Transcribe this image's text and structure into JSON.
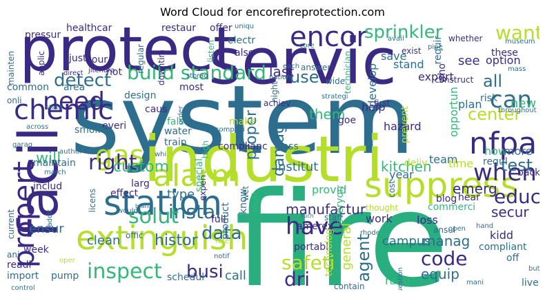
{
  "title": "Word Cloud for encorefireprotection.com",
  "palette": {
    "dark_purple": "#440154",
    "indigo": "#3b2a84",
    "blue": "#31688e",
    "teal": "#21918c",
    "green": "#35b779",
    "lime": "#b5de2b",
    "grey_text": "#c9c9c9"
  },
  "words": [
    {
      "text": "system",
      "color": "#2d6e8e"
    },
    {
      "text": "fire",
      "color": "#29af7f"
    },
    {
      "text": "protect",
      "color": "#3b2a84"
    },
    {
      "text": "servic",
      "color": "#3b2a84"
    },
    {
      "text": "industri",
      "color": "#b5de2b"
    },
    {
      "text": "facil",
      "color": "#3b2a84"
    },
    {
      "text": "extinguish",
      "color": "#b5de2b"
    },
    {
      "text": "suppress",
      "color": "#b5de2b"
    },
    {
      "text": "station",
      "color": "#2d6e8e"
    },
    {
      "text": "alarm",
      "color": "#b5de2b"
    },
    {
      "text": "encor",
      "color": "#3b2a84"
    },
    {
      "text": "nfpa",
      "color": "#3b2a84"
    },
    {
      "text": "chemic",
      "color": "#3b2a84"
    },
    {
      "text": "propert",
      "color": "#3b2a84"
    },
    {
      "text": "need",
      "color": "#3b2a84"
    },
    {
      "text": "sprinkler",
      "color": "#35b779"
    },
    {
      "text": "want",
      "color": "#b5de2b"
    },
    {
      "text": "build standard",
      "color": "#35b779"
    },
    {
      "text": "inspect",
      "color": "#35b779"
    },
    {
      "text": "gas",
      "color": "#b5de2b"
    },
    {
      "text": "when",
      "color": "#3b2a84"
    },
    {
      "text": "right",
      "color": "#3b2a84"
    },
    {
      "text": "have",
      "color": "#3b2a84"
    },
    {
      "text": "detect",
      "color": "#2d6e8e"
    },
    {
      "text": "can",
      "color": "#2d6e8e"
    },
    {
      "text": "educ",
      "color": "#3b2a84"
    },
    {
      "text": "instal",
      "color": "#2d6e8e"
    },
    {
      "text": "safeti",
      "color": "#b5de2b"
    },
    {
      "text": "data",
      "color": "#2d6e8e"
    },
    {
      "text": "dri",
      "color": "#3b2a84"
    },
    {
      "text": "center",
      "color": "#b5de2b"
    },
    {
      "text": "test",
      "color": "#2d6e8e"
    },
    {
      "text": "solut",
      "color": "#35b779"
    },
    {
      "text": "code",
      "color": "#3b2a84"
    },
    {
      "text": "busi",
      "color": "#3b2a84"
    },
    {
      "text": "histor",
      "color": "#2d6e8e"
    },
    {
      "text": "custom",
      "color": "#35b779"
    },
    {
      "text": "use",
      "color": "#2d6e8e"
    },
    {
      "text": "last",
      "color": "#3b2a84"
    },
    {
      "text": "all",
      "color": "#2d6e8e"
    },
    {
      "text": "will",
      "color": "#35b779"
    },
    {
      "text": "them",
      "color": "#35b779"
    },
    {
      "text": "manufactur",
      "color": "#3b2a84"
    },
    {
      "text": "institut",
      "color": "#2d6e8e"
    },
    {
      "text": "kitchen",
      "color": "#35b779"
    },
    {
      "text": "emerg",
      "color": "#3b2a84"
    },
    {
      "text": "secur",
      "color": "#3b2a84"
    },
    {
      "text": "equip",
      "color": "#2d6e8e"
    },
    {
      "text": "manag",
      "color": "#2d6e8e"
    },
    {
      "text": "campus",
      "color": "#2d6e8e"
    },
    {
      "text": "type",
      "color": "#2d6e8e"
    },
    {
      "text": "clean",
      "color": "#2d6e8e"
    },
    {
      "text": "call",
      "color": "#2d6e8e"
    },
    {
      "text": "ensur",
      "color": "#2d6e8e"
    },
    {
      "text": "agent",
      "color": "#2d6e8e"
    },
    {
      "text": "damag",
      "color": "#2d6e8e"
    },
    {
      "text": "proper",
      "color": "#2d6e8e"
    },
    {
      "text": "new",
      "color": "#35b779"
    },
    {
      "text": "save",
      "color": "#2d6e8e"
    },
    {
      "text": "option",
      "color": "#3b2a84"
    },
    {
      "text": "these",
      "color": "#3b2a84"
    },
    {
      "text": "see",
      "color": "#3b2a84"
    },
    {
      "text": "stand",
      "color": "#2d6e8e"
    },
    {
      "text": "expert",
      "color": "#3b2a84"
    },
    {
      "text": "develop",
      "color": "#2d6e8e"
    },
    {
      "text": "help",
      "color": "#3b2a84"
    },
    {
      "text": "hazard",
      "color": "#3b2a84"
    },
    {
      "text": "plan",
      "color": "#2d6e8e"
    },
    {
      "text": "risk",
      "color": "#2d6e8e"
    },
    {
      "text": "team",
      "color": "#2d6e8e"
    },
    {
      "text": "how",
      "color": "#35b779"
    },
    {
      "text": "more",
      "color": "#2d6e8e"
    },
    {
      "text": "regul",
      "color": "#2d6e8e"
    },
    {
      "text": "back",
      "color": "#3b2a84"
    },
    {
      "text": "time",
      "color": "#b5de2b"
    },
    {
      "text": "blog",
      "color": "#3b2a84"
    },
    {
      "text": "hear",
      "color": "#3b2a84"
    },
    {
      "text": "provid",
      "color": "#35b779"
    },
    {
      "text": "everyon",
      "color": "#35b779"
    },
    {
      "text": "commerci",
      "color": "#35b779"
    },
    {
      "text": "loss",
      "color": "#3b2a84"
    },
    {
      "text": "kidd",
      "color": "#3b2a84"
    },
    {
      "text": "compliant",
      "color": "#2d6e8e"
    },
    {
      "text": "off",
      "color": "#2d6e8e"
    },
    {
      "text": "live",
      "color": "#2d6e8e"
    },
    {
      "text": "year",
      "color": "#2d6e8e"
    },
    {
      "text": "deliv",
      "color": "#b5de2b"
    },
    {
      "text": "work",
      "color": "#3b2a84"
    },
    {
      "text": "amerex",
      "color": "#3b2a84"
    },
    {
      "text": "portabl",
      "color": "#3b2a84"
    },
    {
      "text": "general",
      "color": "#b5de2b"
    },
    {
      "text": "technolog",
      "color": "#b5de2b"
    },
    {
      "text": "rang",
      "color": "#35b779"
    },
    {
      "text": "contain",
      "color": "#2d6e8e"
    },
    {
      "text": "full",
      "color": "#3b2a84"
    },
    {
      "text": "product",
      "color": "#2d6e8e"
    },
    {
      "text": "know",
      "color": "#2d6e8e"
    },
    {
      "text": "local",
      "color": "#35b779"
    },
    {
      "text": "wet",
      "color": "#2d6e8e"
    },
    {
      "text": "experi",
      "color": "#3b2a84"
    },
    {
      "text": "complianc",
      "color": "#3b2a84"
    },
    {
      "text": "class",
      "color": "#2d6e8e"
    },
    {
      "text": "make",
      "color": "#b5de2b"
    },
    {
      "text": "special",
      "color": "#35b779"
    },
    {
      "text": "high",
      "color": "#35b779"
    },
    {
      "text": "train",
      "color": "#2d6e8e"
    },
    {
      "text": "water",
      "color": "#2d6e8e"
    },
    {
      "text": "fals",
      "color": "#35b779"
    },
    {
      "text": "caus",
      "color": "#3b2a84"
    },
    {
      "text": "design",
      "color": "#2d6e8e"
    },
    {
      "text": "everi",
      "color": "#3b2a84"
    },
    {
      "text": "smoke",
      "color": "#2d6e8e"
    },
    {
      "text": "maintain",
      "color": "#2d6e8e"
    },
    {
      "text": "includ",
      "color": "#3b2a84"
    },
    {
      "text": "effect",
      "color": "#3b2a84"
    },
    {
      "text": "larg",
      "color": "#3b2a84"
    },
    {
      "text": "week",
      "color": "#3b2a84"
    },
    {
      "text": "readi",
      "color": "#3b2a84"
    },
    {
      "text": "import",
      "color": "#2d6e8e"
    },
    {
      "text": "pump",
      "color": "#2d6e8e"
    },
    {
      "text": "schedul",
      "color": "#2d6e8e"
    },
    {
      "text": "ani",
      "color": "#2d6e8e"
    },
    {
      "text": "hour",
      "color": "#3b2a84"
    },
    {
      "text": "common",
      "color": "#2d6e8e"
    },
    {
      "text": "area",
      "color": "#2d6e8e"
    },
    {
      "text": "onli",
      "color": "#2d6e8e"
    },
    {
      "text": "healthcar",
      "color": "#3b2a84"
    },
    {
      "text": "restaur",
      "color": "#3b2a84"
    },
    {
      "text": "offer",
      "color": "#3b2a84"
    },
    {
      "text": "pressur",
      "color": "#3b2a84"
    },
    {
      "text": "mainten",
      "color": "#2d6e8e"
    },
    {
      "text": "applic",
      "color": "#3b2a84"
    },
    {
      "text": "just",
      "color": "#3b2a84"
    },
    {
      "text": "not",
      "color": "#3b2a84"
    },
    {
      "text": "most",
      "color": "#3b2a84"
    },
    {
      "text": "also",
      "color": "#3b2a84"
    },
    {
      "text": "electr",
      "color": "#2d6e8e"
    },
    {
      "text": "listen",
      "color": "#35b779"
    },
    {
      "text": "night",
      "color": "#2d6e8e"
    },
    {
      "text": "goe",
      "color": "#3b2a84"
    },
    {
      "text": "prevent",
      "color": "#b5de2b"
    },
    {
      "text": "opportun",
      "color": "#35b779"
    },
    {
      "text": "who",
      "color": "#3b2a84"
    },
    {
      "text": "requir",
      "color": "#2d6e8e"
    },
    {
      "text": "construct",
      "color": "#3b2a84"
    },
    {
      "text": "exist",
      "color": "#3b2a84"
    },
    {
      "text": "whether",
      "color": "#3b2a84"
    },
    {
      "text": "technician",
      "color": "#35b779"
    },
    {
      "text": "answer",
      "color": "#2d6e8e"
    },
    {
      "text": "wide",
      "color": "#2d6e8e"
    },
    {
      "text": "first",
      "color": "#3b2a84"
    },
    {
      "text": "achiev",
      "color": "#3b2a84"
    },
    {
      "text": "unit",
      "color": "#2d6e8e"
    },
    {
      "text": "cost",
      "color": "#2d6e8e"
    },
    {
      "text": "ansul",
      "color": "#2d6e8e"
    },
    {
      "text": "question",
      "color": "#2d6e8e"
    },
    {
      "text": "thought",
      "color": "#b5de2b"
    },
    {
      "text": "staff",
      "color": "#2d6e8e"
    },
    {
      "text": "offic",
      "color": "#2d6e8e"
    },
    {
      "text": "current",
      "color": "#2d6e8e"
    },
    {
      "text": "licens",
      "color": "#2d6e8e"
    },
    {
      "text": "garag",
      "color": "#2d6e8e"
    },
    {
      "text": "brand",
      "color": "#2d6e8e"
    },
    {
      "text": "notif",
      "color": "#2d6e8e"
    },
    {
      "text": "rate",
      "color": "#b5de2b"
    },
    {
      "text": "such",
      "color": "#2d6e8e"
    },
    {
      "text": "mani",
      "color": "#2d6e8e"
    },
    {
      "text": "but",
      "color": "#2d6e8e"
    },
    {
      "text": "hand",
      "color": "#2d6e8e"
    },
    {
      "text": "open",
      "color": "#2d6e8e"
    },
    {
      "text": "jitendra",
      "color": "#3b2a84"
    },
    {
      "text": "direct",
      "color": "#3b2a84"
    },
    {
      "text": "downtim",
      "color": "#3b2a84"
    },
    {
      "text": "storag",
      "color": "#2d6e8e"
    },
    {
      "text": "regular",
      "color": "#2d6e8e"
    },
    {
      "text": "throughout",
      "color": "#2d6e8e"
    },
    {
      "text": "museum",
      "color": "#2d6e8e"
    },
    {
      "text": "mass",
      "color": "#2d6e8e"
    },
    {
      "text": "nation",
      "color": "#2d6e8e"
    },
    {
      "text": "each",
      "color": "#2d6e8e"
    },
    {
      "text": "core",
      "color": "#2d6e8e"
    },
    {
      "text": "pipe",
      "color": "#2d6e8e"
    },
    {
      "text": "avail",
      "color": "#2d6e8e"
    },
    {
      "text": "strategi",
      "color": "#2d6e8e"
    },
    {
      "text": "state",
      "color": "#2d6e8e"
    },
    {
      "text": "across",
      "color": "#2d6e8e"
    },
    {
      "text": "author",
      "color": "#2d6e8e"
    },
    {
      "text": "march",
      "color": "#2d6e8e"
    },
    {
      "text": "compani",
      "color": "#2d6e8e"
    },
    {
      "text": "control",
      "color": "#2d6e8e"
    },
    {
      "text": "would",
      "color": "#2d6e8e"
    },
    {
      "text": "order",
      "color": "#2d6e8e"
    },
    {
      "text": "whi",
      "color": "#2d6e8e"
    },
    {
      "text": "addit",
      "color": "#2d6e8e"
    },
    {
      "text": "rhode",
      "color": "#2d6e8e"
    },
    {
      "text": "uniqu",
      "color": "#2d6e8e"
    },
    {
      "text": "oper",
      "color": "#b5de2b"
    }
  ]
}
